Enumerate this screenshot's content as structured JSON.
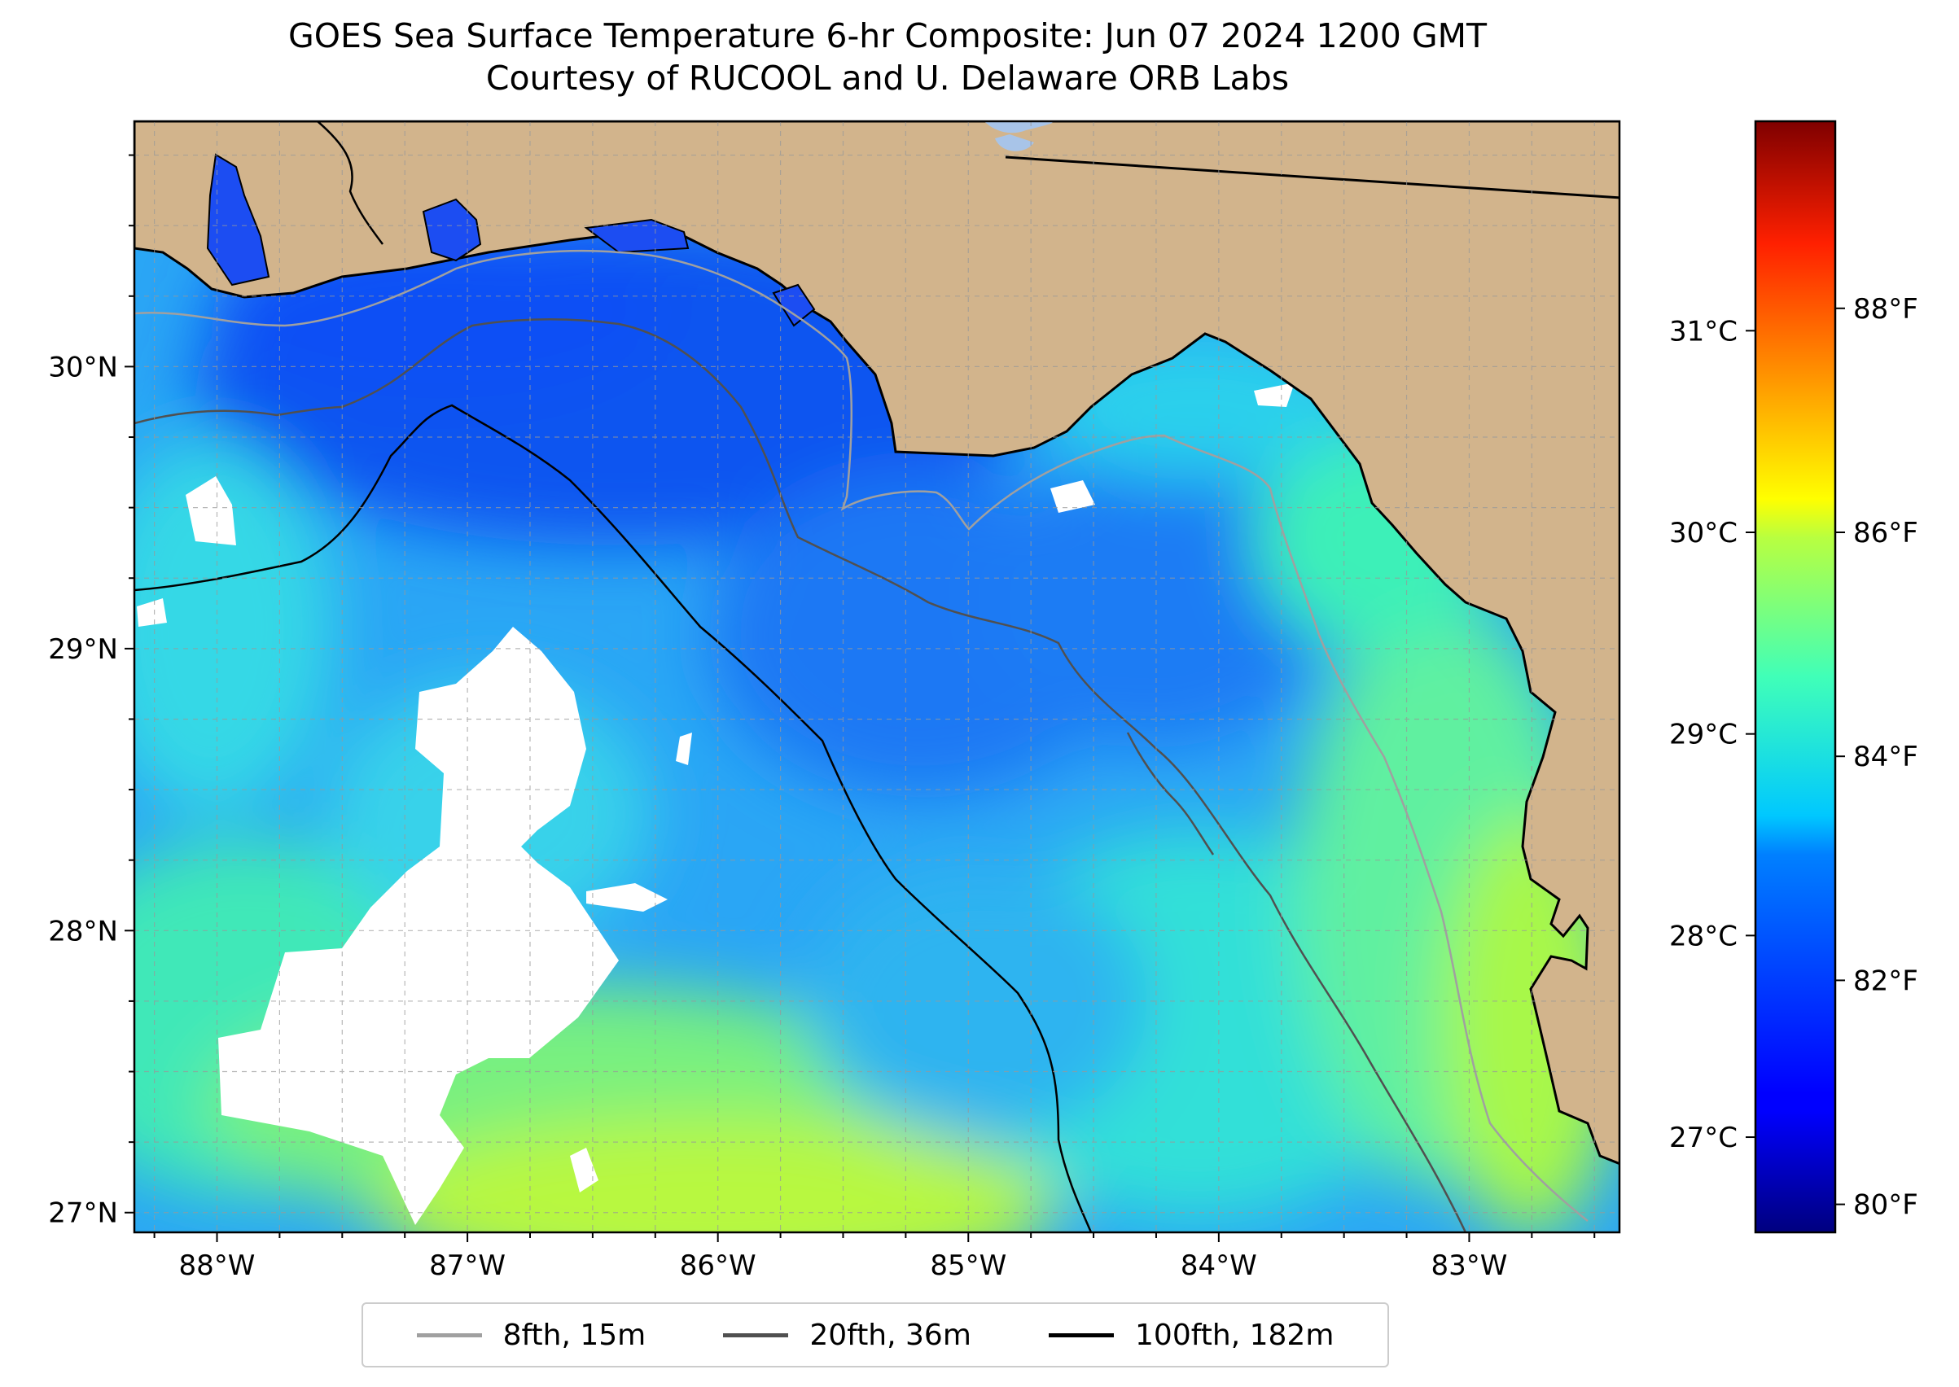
{
  "title": {
    "line1": "GOES Sea Surface Temperature 6-hr Composite: Jun 07 2024 1200 GMT",
    "line2": "Courtesy of RUCOOL and U. Delaware ORB Labs"
  },
  "map": {
    "lon_range": [
      -88.33,
      -82.4
    ],
    "lat_range": [
      26.93,
      30.87
    ],
    "lon_ticks": [
      {
        "value": -88,
        "label": "88°W"
      },
      {
        "value": -87,
        "label": "87°W"
      },
      {
        "value": -86,
        "label": "86°W"
      },
      {
        "value": -85,
        "label": "85°W"
      },
      {
        "value": -84,
        "label": "84°W"
      },
      {
        "value": -83,
        "label": "83°W"
      }
    ],
    "lat_ticks": [
      {
        "value": 27,
        "label": "27°N"
      },
      {
        "value": 28,
        "label": "28°N"
      },
      {
        "value": 29,
        "label": "29°N"
      },
      {
        "value": 30,
        "label": "30°N"
      }
    ],
    "colors": {
      "land": "#d2b48c",
      "cloud_gap": "#ffffff",
      "lake": "#a8c4e8",
      "isobath_15m": "#a0a0a0",
      "isobath_36m": "#505050",
      "isobath_182m": "#000000"
    }
  },
  "colorbar": {
    "celsius_ticks": [
      {
        "value": 27,
        "label": "27°C"
      },
      {
        "value": 28,
        "label": "28°C"
      },
      {
        "value": 29,
        "label": "29°C"
      },
      {
        "value": 30,
        "label": "30°C"
      },
      {
        "value": 31,
        "label": "31°C"
      }
    ],
    "fahrenheit_ticks": [
      {
        "value": 80,
        "label": "80°F"
      },
      {
        "value": 82,
        "label": "82°F"
      },
      {
        "value": 84,
        "label": "84°F"
      },
      {
        "value": 86,
        "label": "86°F"
      },
      {
        "value": 88,
        "label": "88°F"
      }
    ],
    "fahrenheit_range": [
      79.75,
      89.67
    ],
    "colormap": "jet"
  },
  "legend": {
    "items": [
      {
        "label": "8fth, 15m",
        "color": "#a0a0a0"
      },
      {
        "label": "20fth, 36m",
        "color": "#505050"
      },
      {
        "label": "100fth, 182m",
        "color": "#000000"
      }
    ]
  }
}
